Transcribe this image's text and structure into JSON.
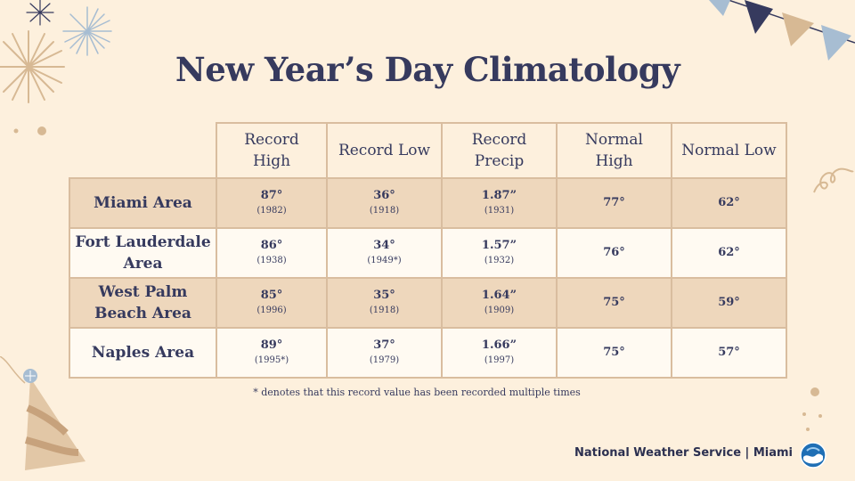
{
  "title": "New Year’s Day Climatology",
  "columns": [
    {
      "line1": "Record",
      "line2": "High"
    },
    {
      "line1": "Record Low",
      "line2": ""
    },
    {
      "line1": "Record",
      "line2": "Precip"
    },
    {
      "line1": "Normal",
      "line2": "High"
    },
    {
      "line1": "Normal Low",
      "line2": ""
    }
  ],
  "rows": [
    {
      "area_line1": "Miami Area",
      "area_line2": "",
      "record_high": "87°",
      "record_high_year": "(1982)",
      "record_low": "36°",
      "record_low_year": "(1918)",
      "record_precip": "1.87”",
      "record_precip_year": "(1931)",
      "normal_high": "77°",
      "normal_low": "62°"
    },
    {
      "area_line1": "Fort Lauderdale",
      "area_line2": "Area",
      "record_high": "86°",
      "record_high_year": "(1938)",
      "record_low": "34°",
      "record_low_year": "(1949*)",
      "record_precip": "1.57”",
      "record_precip_year": "(1932)",
      "normal_high": "76°",
      "normal_low": "62°"
    },
    {
      "area_line1": "West Palm",
      "area_line2": "Beach Area",
      "record_high": "85°",
      "record_high_year": "(1996)",
      "record_low": "35°",
      "record_low_year": "(1918)",
      "record_precip": "1.64”",
      "record_precip_year": "(1909)",
      "normal_high": "75°",
      "normal_low": "59°"
    },
    {
      "area_line1": "Naples Area",
      "area_line2": "",
      "record_high": "89°",
      "record_high_year": "(1995*)",
      "record_low": "37°",
      "record_low_year": "(1979)",
      "record_precip": "1.66”",
      "record_precip_year": "(1997)",
      "normal_high": "75°",
      "normal_low": "57°"
    }
  ],
  "footnote": "* denotes that this record value has been recorded multiple times",
  "footer": "National Weather Service | Miami",
  "logo_icon": "noaa-logo-icon",
  "colors": {
    "background": "#fdf0dd",
    "title": "#363a5e",
    "shaded_row": "#eed7bc",
    "plain_row": "#fffaf2",
    "border": "#d9bd9f"
  }
}
